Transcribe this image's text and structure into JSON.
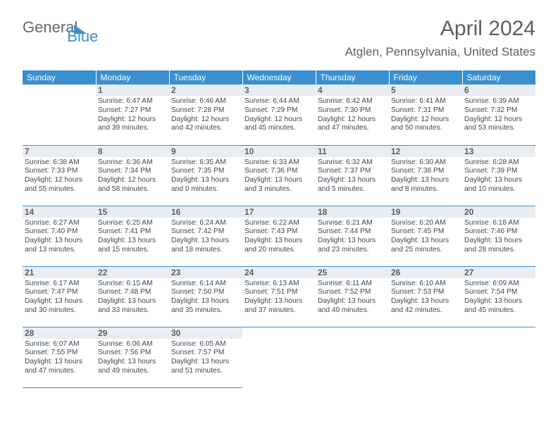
{
  "logo": {
    "general": "General",
    "blue": "Blue"
  },
  "title": "April 2024",
  "location": "Atglen, Pennsylvania, United States",
  "weekdays": [
    "Sunday",
    "Monday",
    "Tuesday",
    "Wednesday",
    "Thursday",
    "Friday",
    "Saturday"
  ],
  "colors": {
    "header_bg": "#3a8fd0",
    "header_text": "#ffffff",
    "daynum_bg": "#e9edf1",
    "daynum_text": "#576068",
    "body_text": "#3f4850",
    "rule": "#3a8fd0",
    "title_text": "#576068"
  },
  "weeks": [
    [
      {
        "day": "",
        "sunrise": "",
        "sunset": "",
        "daylight": ""
      },
      {
        "day": "1",
        "sunrise": "Sunrise: 6:47 AM",
        "sunset": "Sunset: 7:27 PM",
        "daylight": "Daylight: 12 hours and 39 minutes."
      },
      {
        "day": "2",
        "sunrise": "Sunrise: 6:46 AM",
        "sunset": "Sunset: 7:28 PM",
        "daylight": "Daylight: 12 hours and 42 minutes."
      },
      {
        "day": "3",
        "sunrise": "Sunrise: 6:44 AM",
        "sunset": "Sunset: 7:29 PM",
        "daylight": "Daylight: 12 hours and 45 minutes."
      },
      {
        "day": "4",
        "sunrise": "Sunrise: 6:42 AM",
        "sunset": "Sunset: 7:30 PM",
        "daylight": "Daylight: 12 hours and 47 minutes."
      },
      {
        "day": "5",
        "sunrise": "Sunrise: 6:41 AM",
        "sunset": "Sunset: 7:31 PM",
        "daylight": "Daylight: 12 hours and 50 minutes."
      },
      {
        "day": "6",
        "sunrise": "Sunrise: 6:39 AM",
        "sunset": "Sunset: 7:32 PM",
        "daylight": "Daylight: 12 hours and 53 minutes."
      }
    ],
    [
      {
        "day": "7",
        "sunrise": "Sunrise: 6:38 AM",
        "sunset": "Sunset: 7:33 PM",
        "daylight": "Daylight: 12 hours and 55 minutes."
      },
      {
        "day": "8",
        "sunrise": "Sunrise: 6:36 AM",
        "sunset": "Sunset: 7:34 PM",
        "daylight": "Daylight: 12 hours and 58 minutes."
      },
      {
        "day": "9",
        "sunrise": "Sunrise: 6:35 AM",
        "sunset": "Sunset: 7:35 PM",
        "daylight": "Daylight: 13 hours and 0 minutes."
      },
      {
        "day": "10",
        "sunrise": "Sunrise: 6:33 AM",
        "sunset": "Sunset: 7:36 PM",
        "daylight": "Daylight: 13 hours and 3 minutes."
      },
      {
        "day": "11",
        "sunrise": "Sunrise: 6:32 AM",
        "sunset": "Sunset: 7:37 PM",
        "daylight": "Daylight: 13 hours and 5 minutes."
      },
      {
        "day": "12",
        "sunrise": "Sunrise: 6:30 AM",
        "sunset": "Sunset: 7:38 PM",
        "daylight": "Daylight: 13 hours and 8 minutes."
      },
      {
        "day": "13",
        "sunrise": "Sunrise: 6:28 AM",
        "sunset": "Sunset: 7:39 PM",
        "daylight": "Daylight: 13 hours and 10 minutes."
      }
    ],
    [
      {
        "day": "14",
        "sunrise": "Sunrise: 6:27 AM",
        "sunset": "Sunset: 7:40 PM",
        "daylight": "Daylight: 13 hours and 13 minutes."
      },
      {
        "day": "15",
        "sunrise": "Sunrise: 6:25 AM",
        "sunset": "Sunset: 7:41 PM",
        "daylight": "Daylight: 13 hours and 15 minutes."
      },
      {
        "day": "16",
        "sunrise": "Sunrise: 6:24 AM",
        "sunset": "Sunset: 7:42 PM",
        "daylight": "Daylight: 13 hours and 18 minutes."
      },
      {
        "day": "17",
        "sunrise": "Sunrise: 6:22 AM",
        "sunset": "Sunset: 7:43 PM",
        "daylight": "Daylight: 13 hours and 20 minutes."
      },
      {
        "day": "18",
        "sunrise": "Sunrise: 6:21 AM",
        "sunset": "Sunset: 7:44 PM",
        "daylight": "Daylight: 13 hours and 23 minutes."
      },
      {
        "day": "19",
        "sunrise": "Sunrise: 6:20 AM",
        "sunset": "Sunset: 7:45 PM",
        "daylight": "Daylight: 13 hours and 25 minutes."
      },
      {
        "day": "20",
        "sunrise": "Sunrise: 6:18 AM",
        "sunset": "Sunset: 7:46 PM",
        "daylight": "Daylight: 13 hours and 28 minutes."
      }
    ],
    [
      {
        "day": "21",
        "sunrise": "Sunrise: 6:17 AM",
        "sunset": "Sunset: 7:47 PM",
        "daylight": "Daylight: 13 hours and 30 minutes."
      },
      {
        "day": "22",
        "sunrise": "Sunrise: 6:15 AM",
        "sunset": "Sunset: 7:48 PM",
        "daylight": "Daylight: 13 hours and 33 minutes."
      },
      {
        "day": "23",
        "sunrise": "Sunrise: 6:14 AM",
        "sunset": "Sunset: 7:50 PM",
        "daylight": "Daylight: 13 hours and 35 minutes."
      },
      {
        "day": "24",
        "sunrise": "Sunrise: 6:13 AM",
        "sunset": "Sunset: 7:51 PM",
        "daylight": "Daylight: 13 hours and 37 minutes."
      },
      {
        "day": "25",
        "sunrise": "Sunrise: 6:11 AM",
        "sunset": "Sunset: 7:52 PM",
        "daylight": "Daylight: 13 hours and 40 minutes."
      },
      {
        "day": "26",
        "sunrise": "Sunrise: 6:10 AM",
        "sunset": "Sunset: 7:53 PM",
        "daylight": "Daylight: 13 hours and 42 minutes."
      },
      {
        "day": "27",
        "sunrise": "Sunrise: 6:09 AM",
        "sunset": "Sunset: 7:54 PM",
        "daylight": "Daylight: 13 hours and 45 minutes."
      }
    ],
    [
      {
        "day": "28",
        "sunrise": "Sunrise: 6:07 AM",
        "sunset": "Sunset: 7:55 PM",
        "daylight": "Daylight: 13 hours and 47 minutes."
      },
      {
        "day": "29",
        "sunrise": "Sunrise: 6:06 AM",
        "sunset": "Sunset: 7:56 PM",
        "daylight": "Daylight: 13 hours and 49 minutes."
      },
      {
        "day": "30",
        "sunrise": "Sunrise: 6:05 AM",
        "sunset": "Sunset: 7:57 PM",
        "daylight": "Daylight: 13 hours and 51 minutes."
      },
      {
        "day": "",
        "sunrise": "",
        "sunset": "",
        "daylight": ""
      },
      {
        "day": "",
        "sunrise": "",
        "sunset": "",
        "daylight": ""
      },
      {
        "day": "",
        "sunrise": "",
        "sunset": "",
        "daylight": ""
      },
      {
        "day": "",
        "sunrise": "",
        "sunset": "",
        "daylight": ""
      }
    ]
  ]
}
